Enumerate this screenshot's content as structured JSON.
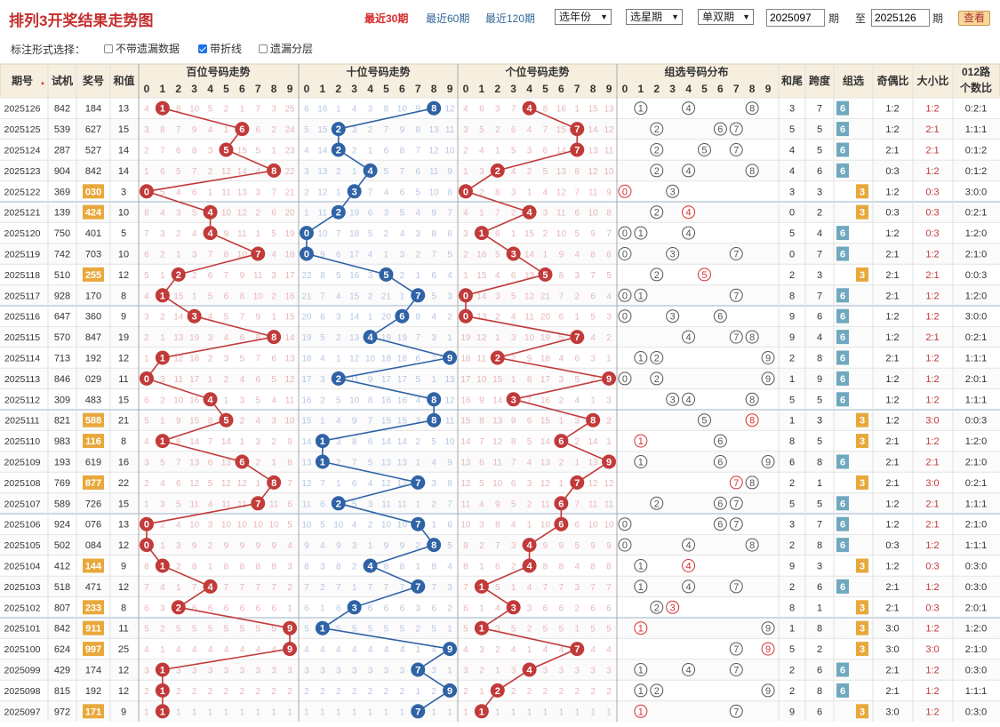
{
  "page_title": "排列3开奖结果走势图",
  "quick_links": [
    "最近30期",
    "最近60期",
    "最近120期"
  ],
  "selects": {
    "year": "选年份",
    "week": "选星期",
    "parity": "单双期"
  },
  "period_range": {
    "from": "2025097",
    "from_unit": "期",
    "sep": "至",
    "to": "2025126",
    "to_unit": "期"
  },
  "query_button": "查看",
  "options": {
    "label": "标注形式选择：",
    "items": [
      {
        "label": "不带遗漏数据",
        "checked": false
      },
      {
        "label": "带折线",
        "checked": true
      },
      {
        "label": "遗漏分层",
        "checked": false
      }
    ]
  },
  "headers": {
    "period": "期号",
    "trial": "试机",
    "prize": "奖号",
    "sum": "和值",
    "hundreds": "百位号码走势",
    "tens": "十位号码走势",
    "units": "个位号码走势",
    "group": "组选号码分布",
    "tail": "和尾",
    "span": "跨度",
    "groupsel": "组选",
    "oddeven": "奇偶比",
    "bigsmall": "大小比",
    "route": "012路个数比",
    "digits": [
      "0",
      "1",
      "2",
      "3",
      "4",
      "5",
      "6",
      "7",
      "8",
      "9"
    ]
  },
  "colors": {
    "hundreds_line": "#c23a3a",
    "tens_line": "#2f63a6",
    "units_line": "#c23a3a",
    "group3": "#e8a83b",
    "group6": "#6fa8bf",
    "missing": "#e3a8a8"
  },
  "rows": [
    {
      "period": "2025126",
      "trial": "842",
      "prize": "184",
      "sum": "13",
      "group_type": "6",
      "tail": "3",
      "span": "7",
      "odd_even": "1:2",
      "big_small": "1:2",
      "route": "0:2:1"
    },
    {
      "period": "2025125",
      "trial": "539",
      "prize": "627",
      "sum": "15",
      "group_type": "6",
      "tail": "5",
      "span": "5",
      "odd_even": "1:2",
      "big_small": "2:1",
      "route": "1:1:1"
    },
    {
      "period": "2025124",
      "trial": "287",
      "prize": "527",
      "sum": "14",
      "group_type": "6",
      "tail": "4",
      "span": "5",
      "odd_even": "2:1",
      "big_small": "2:1",
      "route": "0:1:2"
    },
    {
      "period": "2025123",
      "trial": "904",
      "prize": "842",
      "sum": "14",
      "group_type": "6",
      "tail": "4",
      "span": "6",
      "odd_even": "0:3",
      "big_small": "1:2",
      "route": "0:1:2"
    },
    {
      "period": "2025122",
      "trial": "369",
      "prize": "030",
      "sum": "3",
      "group_type": "3",
      "tail": "3",
      "span": "3",
      "odd_even": "1:2",
      "big_small": "0:3",
      "route": "3:0:0"
    },
    {
      "period": "2025121",
      "trial": "139",
      "prize": "424",
      "sum": "10",
      "group_type": "3",
      "tail": "0",
      "span": "2",
      "odd_even": "0:3",
      "big_small": "0:3",
      "route": "0:2:1"
    },
    {
      "period": "2025120",
      "trial": "750",
      "prize": "401",
      "sum": "5",
      "group_type": "6",
      "tail": "5",
      "span": "4",
      "odd_even": "1:2",
      "big_small": "0:3",
      "route": "1:2:0"
    },
    {
      "period": "2025119",
      "trial": "742",
      "prize": "703",
      "sum": "10",
      "group_type": "6",
      "tail": "0",
      "span": "7",
      "odd_even": "2:1",
      "big_small": "1:2",
      "route": "2:1:0"
    },
    {
      "period": "2025118",
      "trial": "510",
      "prize": "255",
      "sum": "12",
      "group_type": "3",
      "tail": "2",
      "span": "3",
      "odd_even": "2:1",
      "big_small": "2:1",
      "route": "0:0:3"
    },
    {
      "period": "2025117",
      "trial": "928",
      "prize": "170",
      "sum": "8",
      "group_type": "6",
      "tail": "8",
      "span": "7",
      "odd_even": "2:1",
      "big_small": "1:2",
      "route": "1:2:0"
    },
    {
      "period": "2025116",
      "trial": "647",
      "prize": "360",
      "sum": "9",
      "group_type": "6",
      "tail": "9",
      "span": "6",
      "odd_even": "1:2",
      "big_small": "1:2",
      "route": "3:0:0"
    },
    {
      "period": "2025115",
      "trial": "570",
      "prize": "847",
      "sum": "19",
      "group_type": "6",
      "tail": "9",
      "span": "4",
      "odd_even": "1:2",
      "big_small": "2:1",
      "route": "0:2:1"
    },
    {
      "period": "2025114",
      "trial": "713",
      "prize": "192",
      "sum": "12",
      "group_type": "6",
      "tail": "2",
      "span": "8",
      "odd_even": "2:1",
      "big_small": "1:2",
      "route": "1:1:1"
    },
    {
      "period": "2025113",
      "trial": "846",
      "prize": "029",
      "sum": "11",
      "group_type": "6",
      "tail": "1",
      "span": "9",
      "odd_even": "1:2",
      "big_small": "1:2",
      "route": "2:0:1"
    },
    {
      "period": "2025112",
      "trial": "309",
      "prize": "483",
      "sum": "15",
      "group_type": "6",
      "tail": "5",
      "span": "5",
      "odd_even": "1:2",
      "big_small": "1:2",
      "route": "1:1:1"
    },
    {
      "period": "2025111",
      "trial": "821",
      "prize": "588",
      "sum": "21",
      "group_type": "3",
      "tail": "1",
      "span": "3",
      "odd_even": "1:2",
      "big_small": "3:0",
      "route": "0:0:3"
    },
    {
      "period": "2025110",
      "trial": "983",
      "prize": "116",
      "sum": "8",
      "group_type": "3",
      "tail": "8",
      "span": "5",
      "odd_even": "2:1",
      "big_small": "1:2",
      "route": "1:2:0"
    },
    {
      "period": "2025109",
      "trial": "193",
      "prize": "619",
      "sum": "16",
      "group_type": "6",
      "tail": "6",
      "span": "8",
      "odd_even": "2:1",
      "big_small": "2:1",
      "route": "2:1:0"
    },
    {
      "period": "2025108",
      "trial": "769",
      "prize": "877",
      "sum": "22",
      "group_type": "3",
      "tail": "2",
      "span": "1",
      "odd_even": "2:1",
      "big_small": "3:0",
      "route": "0:2:1"
    },
    {
      "period": "2025107",
      "trial": "589",
      "prize": "726",
      "sum": "15",
      "group_type": "6",
      "tail": "5",
      "span": "5",
      "odd_even": "1:2",
      "big_small": "2:1",
      "route": "1:1:1"
    },
    {
      "period": "2025106",
      "trial": "924",
      "prize": "076",
      "sum": "13",
      "group_type": "6",
      "tail": "3",
      "span": "7",
      "odd_even": "1:2",
      "big_small": "2:1",
      "route": "2:1:0"
    },
    {
      "period": "2025105",
      "trial": "502",
      "prize": "084",
      "sum": "12",
      "group_type": "6",
      "tail": "2",
      "span": "8",
      "odd_even": "0:3",
      "big_small": "1:2",
      "route": "1:1:1"
    },
    {
      "period": "2025104",
      "trial": "412",
      "prize": "144",
      "sum": "9",
      "group_type": "3",
      "tail": "9",
      "span": "3",
      "odd_even": "1:2",
      "big_small": "0:3",
      "route": "0:3:0"
    },
    {
      "period": "2025103",
      "trial": "518",
      "prize": "471",
      "sum": "12",
      "group_type": "6",
      "tail": "2",
      "span": "6",
      "odd_even": "2:1",
      "big_small": "1:2",
      "route": "0:3:0"
    },
    {
      "period": "2025102",
      "trial": "807",
      "prize": "233",
      "sum": "8",
      "group_type": "3",
      "tail": "8",
      "span": "1",
      "odd_even": "2:1",
      "big_small": "0:3",
      "route": "2:0:1"
    },
    {
      "period": "2025101",
      "trial": "842",
      "prize": "911",
      "sum": "11",
      "group_type": "3",
      "tail": "1",
      "span": "8",
      "odd_even": "3:0",
      "big_small": "1:2",
      "route": "1:2:0"
    },
    {
      "period": "2025100",
      "trial": "624",
      "prize": "997",
      "sum": "25",
      "group_type": "3",
      "tail": "5",
      "span": "2",
      "odd_even": "3:0",
      "big_small": "3:0",
      "route": "2:1:0"
    },
    {
      "period": "2025099",
      "trial": "429",
      "prize": "174",
      "sum": "12",
      "group_type": "6",
      "tail": "2",
      "span": "6",
      "odd_even": "2:1",
      "big_small": "1:2",
      "route": "0:3:0"
    },
    {
      "period": "2025098",
      "trial": "815",
      "prize": "192",
      "sum": "12",
      "group_type": "6",
      "tail": "2",
      "span": "8",
      "odd_even": "2:1",
      "big_small": "1:2",
      "route": "1:1:1"
    },
    {
      "period": "2025097",
      "trial": "972",
      "prize": "171",
      "sum": "9",
      "group_type": "3",
      "tail": "9",
      "span": "6",
      "odd_even": "3:0",
      "big_small": "1:2",
      "route": "0:3:0"
    }
  ]
}
